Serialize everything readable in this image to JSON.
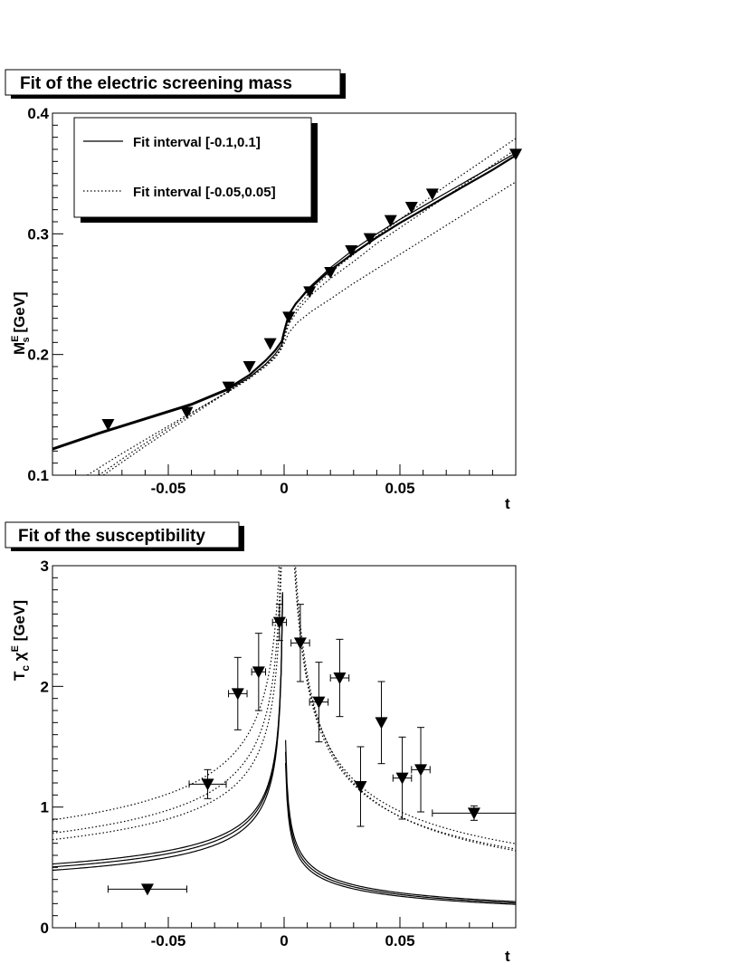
{
  "chart_data": [
    {
      "type": "line",
      "title": "Fit of the electric screening mass",
      "xlabel": "t",
      "ylabel": {
        "main": "M",
        "sup": "E",
        "sub": "s",
        "unit": " [GeV]"
      },
      "xlim": [
        -0.1,
        0.1
      ],
      "ylim": [
        0.1,
        0.4
      ],
      "x_ticks": [
        -0.05,
        0,
        0.05
      ],
      "x_tick_labels": [
        "-0.05",
        "0",
        "0.05"
      ],
      "y_ticks": [
        0.1,
        0.2,
        0.3,
        0.4
      ],
      "y_tick_labels": [
        "0.1",
        "0.2",
        "0.3",
        "0.4"
      ],
      "legend": {
        "placement": "top-left",
        "entries": [
          {
            "label": "Fit interval [-0.1,0.1]",
            "style": "solid"
          },
          {
            "label": "Fit interval [-0.05,0.05]",
            "style": "dotted"
          }
        ]
      },
      "markers": {
        "x": [
          -0.076,
          -0.042,
          -0.024,
          -0.015,
          -0.006,
          0.002,
          0.011,
          0.02,
          0.029,
          0.037,
          0.046,
          0.055,
          0.064,
          0.1
        ],
        "y": [
          0.142,
          0.152,
          0.173,
          0.19,
          0.209,
          0.231,
          0.252,
          0.268,
          0.286,
          0.296,
          0.311,
          0.322,
          0.333,
          0.366
        ]
      },
      "series": [
        {
          "style": "solid",
          "width": 2.2,
          "x": [
            -0.1,
            -0.08,
            -0.06,
            -0.04,
            -0.025,
            -0.015,
            -0.008,
            -0.004,
            -0.001,
            0.0,
            0.002,
            0.005,
            0.01,
            0.02,
            0.03,
            0.04,
            0.05,
            0.06,
            0.07,
            0.08,
            0.09,
            0.1
          ],
          "y": [
            0.122,
            0.135,
            0.147,
            0.159,
            0.171,
            0.183,
            0.195,
            0.203,
            0.211,
            0.219,
            0.233,
            0.242,
            0.253,
            0.27,
            0.284,
            0.297,
            0.309,
            0.32,
            0.331,
            0.342,
            0.353,
            0.365
          ]
        },
        {
          "style": "solid",
          "width": 1.2,
          "x": [
            -0.1,
            -0.08,
            -0.06,
            -0.04,
            -0.025,
            -0.015,
            -0.008,
            -0.004,
            -0.001,
            0.0,
            0.002,
            0.005,
            0.01,
            0.02,
            0.03,
            0.04,
            0.05,
            0.06,
            0.07,
            0.08,
            0.09,
            0.1
          ],
          "y": [
            0.121,
            0.134,
            0.146,
            0.158,
            0.17,
            0.181,
            0.192,
            0.2,
            0.208,
            0.217,
            0.232,
            0.242,
            0.254,
            0.272,
            0.287,
            0.3,
            0.312,
            0.323,
            0.334,
            0.345,
            0.356,
            0.367
          ]
        },
        {
          "style": "dotted",
          "width": 1.2,
          "x": [
            -0.085,
            -0.07,
            -0.055,
            -0.04,
            -0.025,
            -0.015,
            -0.008,
            -0.004,
            -0.001,
            0.0,
            0.002,
            0.006,
            0.012,
            0.02,
            0.03,
            0.04,
            0.05,
            0.06,
            0.07,
            0.08,
            0.09,
            0.1
          ],
          "y": [
            0.1,
            0.118,
            0.135,
            0.152,
            0.168,
            0.18,
            0.19,
            0.197,
            0.205,
            0.213,
            0.225,
            0.237,
            0.25,
            0.263,
            0.277,
            0.292,
            0.305,
            0.318,
            0.331,
            0.344,
            0.357,
            0.37
          ]
        },
        {
          "style": "dotted",
          "width": 1.2,
          "x": [
            -0.08,
            -0.065,
            -0.05,
            -0.035,
            -0.022,
            -0.013,
            -0.007,
            -0.003,
            -0.001,
            0.0,
            0.002,
            0.006,
            0.012,
            0.02,
            0.03,
            0.04,
            0.05,
            0.06,
            0.07,
            0.08,
            0.09,
            0.1
          ],
          "y": [
            0.1,
            0.12,
            0.139,
            0.157,
            0.172,
            0.184,
            0.193,
            0.2,
            0.207,
            0.215,
            0.227,
            0.24,
            0.254,
            0.268,
            0.283,
            0.298,
            0.312,
            0.326,
            0.34,
            0.353,
            0.366,
            0.379
          ]
        },
        {
          "style": "dotted",
          "width": 1.2,
          "x": [
            -0.078,
            -0.06,
            -0.045,
            -0.03,
            -0.018,
            -0.01,
            -0.005,
            -0.002,
            0.0,
            0.002,
            0.006,
            0.012,
            0.02,
            0.03,
            0.04,
            0.05,
            0.06,
            0.07,
            0.08,
            0.09,
            0.1
          ],
          "y": [
            0.1,
            0.124,
            0.143,
            0.162,
            0.177,
            0.188,
            0.196,
            0.203,
            0.209,
            0.218,
            0.227,
            0.236,
            0.246,
            0.259,
            0.271,
            0.283,
            0.295,
            0.307,
            0.319,
            0.331,
            0.343
          ]
        }
      ]
    },
    {
      "type": "line",
      "title": "Fit of the susceptibility",
      "xlabel": "t",
      "ylabel": {
        "main": "T",
        "sub": "c",
        "mid": " χ",
        "sup": "E",
        "unit": " [GeV]"
      },
      "xlim": [
        -0.1,
        0.1
      ],
      "ylim": [
        0,
        3
      ],
      "x_ticks": [
        -0.05,
        0,
        0.05
      ],
      "x_tick_labels": [
        "-0.05",
        "0",
        "0.05"
      ],
      "y_ticks": [
        0,
        1,
        2,
        3
      ],
      "y_tick_labels": [
        "0",
        "1",
        "2",
        "3"
      ],
      "markers": {
        "x": [
          -0.059,
          -0.033,
          -0.02,
          -0.011,
          -0.002,
          0.007,
          0.015,
          0.024,
          0.033,
          0.042,
          0.051,
          0.059,
          0.082
        ],
        "y": [
          0.32,
          1.19,
          1.94,
          2.12,
          2.53,
          2.36,
          1.87,
          2.07,
          1.17,
          1.7,
          1.24,
          1.31,
          0.95
        ],
        "xerr": [
          0.017,
          0.008,
          0.004,
          0.003,
          0.003,
          0.004,
          0.004,
          0.004,
          0.0,
          0.0,
          0.004,
          0.004,
          0.018
        ],
        "yerr": [
          0.0,
          0.12,
          0.3,
          0.32,
          0.15,
          0.32,
          0.33,
          0.32,
          0.33,
          0.34,
          0.34,
          0.35,
          0.06
        ]
      },
      "series": [
        {
          "style": "solid",
          "kind": "cusp",
          "a": 0.146,
          "b": 0.17,
          "p": 0.39,
          "c": 0.116,
          "d": -0.06,
          "q": 0.34
        },
        {
          "style": "solid",
          "kind": "cusp",
          "a": 0.137,
          "b": 0.16,
          "p": 0.4,
          "c": 0.114,
          "d": -0.05,
          "q": 0.35
        },
        {
          "style": "solid",
          "kind": "cusp",
          "a": 0.127,
          "b": 0.15,
          "p": 0.41,
          "c": 0.112,
          "d": -0.04,
          "q": 0.36
        },
        {
          "style": "dotted",
          "kind": "cusp",
          "a": 0.418,
          "b": 0.02,
          "p": 0.32,
          "c": 0.236,
          "d": 0.0,
          "q": 0.47
        },
        {
          "style": "dotted",
          "kind": "cusp",
          "a": 0.348,
          "b": 0.04,
          "p": 0.33,
          "c": 0.226,
          "d": -0.03,
          "q": 0.48
        },
        {
          "style": "dotted",
          "kind": "cusp",
          "a": 0.297,
          "b": 0.08,
          "p": 0.34,
          "c": 0.226,
          "d": -0.06,
          "q": 0.49
        }
      ]
    }
  ]
}
